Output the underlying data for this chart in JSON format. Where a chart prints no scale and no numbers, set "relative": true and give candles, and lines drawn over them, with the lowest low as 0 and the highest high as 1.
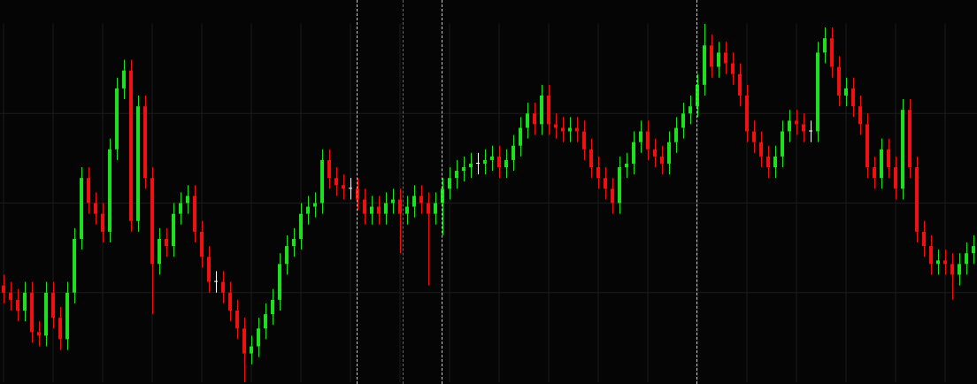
{
  "chart_data": {
    "type": "candlestick",
    "relative": true,
    "grid": true,
    "categories": [
      null,
      null,
      null,
      null,
      null,
      null,
      null,
      null,
      null,
      null,
      null,
      null,
      null,
      null,
      null,
      null,
      null,
      null,
      null,
      null,
      null,
      null,
      null,
      null,
      null,
      null,
      null,
      null,
      null,
      null,
      null,
      null,
      null,
      null,
      null,
      null,
      null,
      null,
      null,
      null,
      null,
      null,
      null,
      null,
      null,
      null,
      null,
      null,
      null,
      null,
      null,
      null,
      null,
      null,
      null,
      null,
      null,
      null,
      null,
      null,
      null,
      null,
      null,
      null,
      null,
      null,
      null,
      null,
      null,
      null,
      null,
      null,
      null,
      null,
      null,
      null,
      null,
      null,
      null,
      null,
      null,
      null,
      null,
      null,
      null,
      null,
      null,
      null,
      null,
      null,
      null,
      null,
      null,
      null,
      null,
      null,
      null,
      null,
      null,
      null,
      null,
      null,
      null,
      null,
      null,
      null,
      null,
      null,
      null,
      null,
      null,
      null,
      null,
      null,
      null,
      null,
      null,
      null,
      null,
      null,
      null,
      null,
      null,
      null,
      null,
      null,
      null,
      null,
      null,
      null,
      null,
      null,
      null,
      null,
      null,
      null,
      null,
      null
    ],
    "ohlc": [
      [
        0.27,
        0.3,
        0.22,
        0.25
      ],
      [
        0.25,
        0.28,
        0.2,
        0.23
      ],
      [
        0.23,
        0.26,
        0.17,
        0.2
      ],
      [
        0.2,
        0.28,
        0.17,
        0.25
      ],
      [
        0.25,
        0.28,
        0.11,
        0.14
      ],
      [
        0.14,
        0.17,
        0.1,
        0.13
      ],
      [
        0.13,
        0.28,
        0.1,
        0.25
      ],
      [
        0.25,
        0.28,
        0.15,
        0.18
      ],
      [
        0.18,
        0.21,
        0.09,
        0.12
      ],
      [
        0.12,
        0.28,
        0.09,
        0.25
      ],
      [
        0.25,
        0.43,
        0.22,
        0.4
      ],
      [
        0.4,
        0.6,
        0.37,
        0.57
      ],
      [
        0.57,
        0.6,
        0.47,
        0.5
      ],
      [
        0.5,
        0.53,
        0.44,
        0.47
      ],
      [
        0.47,
        0.5,
        0.39,
        0.42
      ],
      [
        0.42,
        0.68,
        0.39,
        0.65
      ],
      [
        0.65,
        0.85,
        0.62,
        0.82
      ],
      [
        0.82,
        0.9,
        0.79,
        0.87
      ],
      [
        0.87,
        0.9,
        0.42,
        0.45
      ],
      [
        0.45,
        0.8,
        0.42,
        0.77
      ],
      [
        0.77,
        0.8,
        0.54,
        0.57
      ],
      [
        0.57,
        0.6,
        0.19,
        0.33
      ],
      [
        0.33,
        0.43,
        0.3,
        0.4
      ],
      [
        0.4,
        0.43,
        0.35,
        0.38
      ],
      [
        0.38,
        0.5,
        0.35,
        0.47
      ],
      [
        0.47,
        0.53,
        0.44,
        0.5
      ],
      [
        0.5,
        0.55,
        0.47,
        0.52
      ],
      [
        0.52,
        0.55,
        0.39,
        0.42
      ],
      [
        0.42,
        0.45,
        0.32,
        0.35
      ],
      [
        0.35,
        0.38,
        0.25,
        0.28
      ],
      [
        0.28,
        0.31,
        0.25,
        0.28
      ],
      [
        0.28,
        0.31,
        0.22,
        0.25
      ],
      [
        0.25,
        0.28,
        0.17,
        0.2
      ],
      [
        0.2,
        0.23,
        0.12,
        0.15
      ],
      [
        0.15,
        0.18,
        0,
        0.08
      ],
      [
        0.08,
        0.13,
        0.05,
        0.1
      ],
      [
        0.1,
        0.18,
        0.07,
        0.15
      ],
      [
        0.15,
        0.22,
        0.12,
        0.19
      ],
      [
        0.19,
        0.26,
        0.16,
        0.23
      ],
      [
        0.23,
        0.36,
        0.2,
        0.33
      ],
      [
        0.33,
        0.41,
        0.3,
        0.38
      ],
      [
        0.38,
        0.43,
        0.35,
        0.4
      ],
      [
        0.4,
        0.5,
        0.37,
        0.47
      ],
      [
        0.47,
        0.52,
        0.44,
        0.49
      ],
      [
        0.49,
        0.53,
        0.46,
        0.5
      ],
      [
        0.5,
        0.65,
        0.47,
        0.62
      ],
      [
        0.62,
        0.65,
        0.54,
        0.57
      ],
      [
        0.57,
        0.6,
        0.52,
        0.55
      ],
      [
        0.55,
        0.58,
        0.51,
        0.54
      ],
      [
        0.54,
        0.57,
        0.51,
        0.54
      ],
      [
        0.54,
        0.57,
        0.48,
        0.51
      ],
      [
        0.51,
        0.54,
        0.44,
        0.47
      ],
      [
        0.47,
        0.52,
        0.44,
        0.49
      ],
      [
        0.49,
        0.52,
        0.44,
        0.47
      ],
      [
        0.47,
        0.53,
        0.44,
        0.5
      ],
      [
        0.5,
        0.54,
        0.47,
        0.51
      ],
      [
        0.51,
        0.54,
        0.36,
        0.47
      ],
      [
        0.47,
        0.52,
        0.44,
        0.49
      ],
      [
        0.49,
        0.55,
        0.46,
        0.52
      ],
      [
        0.52,
        0.55,
        0.47,
        0.5
      ],
      [
        0.5,
        0.53,
        0.27,
        0.47
      ],
      [
        0.47,
        0.53,
        0.44,
        0.5
      ],
      [
        0.5,
        0.57,
        0.41,
        0.54
      ],
      [
        0.54,
        0.6,
        0.51,
        0.57
      ],
      [
        0.57,
        0.62,
        0.54,
        0.59
      ],
      [
        0.59,
        0.63,
        0.56,
        0.6
      ],
      [
        0.6,
        0.64,
        0.57,
        0.61
      ],
      [
        0.61,
        0.64,
        0.58,
        0.61
      ],
      [
        0.61,
        0.65,
        0.58,
        0.62
      ],
      [
        0.62,
        0.66,
        0.59,
        0.63
      ],
      [
        0.63,
        0.66,
        0.57,
        0.6
      ],
      [
        0.6,
        0.65,
        0.57,
        0.62
      ],
      [
        0.62,
        0.69,
        0.59,
        0.66
      ],
      [
        0.66,
        0.74,
        0.63,
        0.71
      ],
      [
        0.71,
        0.78,
        0.68,
        0.75
      ],
      [
        0.75,
        0.78,
        0.69,
        0.72
      ],
      [
        0.72,
        0.83,
        0.69,
        0.8
      ],
      [
        0.8,
        0.83,
        0.69,
        0.72
      ],
      [
        0.72,
        0.75,
        0.68,
        0.71
      ],
      [
        0.71,
        0.74,
        0.67,
        0.7
      ],
      [
        0.7,
        0.74,
        0.67,
        0.71
      ],
      [
        0.71,
        0.74,
        0.67,
        0.7
      ],
      [
        0.7,
        0.73,
        0.62,
        0.65
      ],
      [
        0.65,
        0.68,
        0.57,
        0.6
      ],
      [
        0.6,
        0.63,
        0.54,
        0.57
      ],
      [
        0.57,
        0.6,
        0.51,
        0.54
      ],
      [
        0.54,
        0.57,
        0.47,
        0.5
      ],
      [
        0.5,
        0.63,
        0.47,
        0.6
      ],
      [
        0.6,
        0.64,
        0.57,
        0.61
      ],
      [
        0.61,
        0.7,
        0.58,
        0.67
      ],
      [
        0.67,
        0.73,
        0.64,
        0.7
      ],
      [
        0.7,
        0.73,
        0.62,
        0.65
      ],
      [
        0.65,
        0.68,
        0.6,
        0.63
      ],
      [
        0.63,
        0.66,
        0.58,
        0.61
      ],
      [
        0.61,
        0.7,
        0.58,
        0.67
      ],
      [
        0.67,
        0.74,
        0.64,
        0.71
      ],
      [
        0.71,
        0.78,
        0.68,
        0.75
      ],
      [
        0.75,
        0.8,
        0.72,
        0.77
      ],
      [
        0.77,
        0.86,
        0.74,
        0.83
      ],
      [
        0.83,
        1,
        0.8,
        0.94
      ],
      [
        0.94,
        0.97,
        0.85,
        0.88
      ],
      [
        0.88,
        0.95,
        0.85,
        0.92
      ],
      [
        0.92,
        0.95,
        0.86,
        0.89
      ],
      [
        0.89,
        0.92,
        0.83,
        0.86
      ],
      [
        0.86,
        0.89,
        0.77,
        0.8
      ],
      [
        0.8,
        0.83,
        0.67,
        0.7
      ],
      [
        0.7,
        0.73,
        0.64,
        0.67
      ],
      [
        0.67,
        0.7,
        0.6,
        0.63
      ],
      [
        0.63,
        0.66,
        0.57,
        0.6
      ],
      [
        0.6,
        0.66,
        0.57,
        0.63
      ],
      [
        0.63,
        0.73,
        0.6,
        0.7
      ],
      [
        0.7,
        0.76,
        0.67,
        0.73
      ],
      [
        0.73,
        0.76,
        0.69,
        0.72
      ],
      [
        0.72,
        0.75,
        0.67,
        0.7
      ],
      [
        0.7,
        0.73,
        0.67,
        0.7
      ],
      [
        0.7,
        0.95,
        0.67,
        0.92
      ],
      [
        0.92,
        0.99,
        0.89,
        0.96
      ],
      [
        0.96,
        0.99,
        0.85,
        0.88
      ],
      [
        0.88,
        0.91,
        0.77,
        0.8
      ],
      [
        0.8,
        0.85,
        0.77,
        0.82
      ],
      [
        0.82,
        0.85,
        0.74,
        0.77
      ],
      [
        0.77,
        0.8,
        0.69,
        0.72
      ],
      [
        0.72,
        0.75,
        0.57,
        0.6
      ],
      [
        0.6,
        0.63,
        0.54,
        0.57
      ],
      [
        0.57,
        0.68,
        0.54,
        0.65
      ],
      [
        0.65,
        0.68,
        0.57,
        0.6
      ],
      [
        0.6,
        0.63,
        0.51,
        0.54
      ],
      [
        0.54,
        0.79,
        0.51,
        0.76
      ],
      [
        0.76,
        0.79,
        0.57,
        0.6
      ],
      [
        0.6,
        0.63,
        0.39,
        0.42
      ],
      [
        0.42,
        0.45,
        0.35,
        0.38
      ],
      [
        0.38,
        0.41,
        0.3,
        0.33
      ],
      [
        0.33,
        0.37,
        0.3,
        0.34
      ],
      [
        0.34,
        0.37,
        0.3,
        0.33
      ],
      [
        0.33,
        0.36,
        0.23,
        0.3
      ],
      [
        0.3,
        0.36,
        0.27,
        0.33
      ],
      [
        0.33,
        0.39,
        0.3,
        0.36
      ],
      [
        0.36,
        0.41,
        0.33,
        0.38
      ]
    ],
    "colors": [
      "#f01010",
      "#f01010",
      "#f01010",
      "#1fe01f",
      "#f01010",
      "#f01010",
      "#1fe01f",
      "#f01010",
      "#f01010",
      "#1fe01f",
      "#1fe01f",
      "#1fe01f",
      "#f01010",
      "#f01010",
      "#f01010",
      "#1fe01f",
      "#1fe01f",
      "#1fe01f",
      "#f01010",
      "#1fe01f",
      "#f01010",
      "#f01010",
      "#1fe01f",
      "#f01010",
      "#1fe01f",
      "#1fe01f",
      "#1fe01f",
      "#f01010",
      "#f01010",
      "#f01010",
      "#ffffff",
      "#f01010",
      "#f01010",
      "#f01010",
      "#f01010",
      "#1fe01f",
      "#1fe01f",
      "#1fe01f",
      "#1fe01f",
      "#1fe01f",
      "#1fe01f",
      "#1fe01f",
      "#1fe01f",
      "#1fe01f",
      "#1fe01f",
      "#1fe01f",
      "#f01010",
      "#f01010",
      "#f01010",
      "#ffffff",
      "#f01010",
      "#f01010",
      "#1fe01f",
      "#f01010",
      "#1fe01f",
      "#1fe01f",
      "#f01010",
      "#1fe01f",
      "#1fe01f",
      "#f01010",
      "#f01010",
      "#1fe01f",
      "#1fe01f",
      "#1fe01f",
      "#1fe01f",
      "#1fe01f",
      "#1fe01f",
      "#ffffff",
      "#1fe01f",
      "#1fe01f",
      "#f01010",
      "#1fe01f",
      "#1fe01f",
      "#1fe01f",
      "#1fe01f",
      "#f01010",
      "#1fe01f",
      "#f01010",
      "#f01010",
      "#f01010",
      "#1fe01f",
      "#f01010",
      "#f01010",
      "#f01010",
      "#f01010",
      "#f01010",
      "#f01010",
      "#1fe01f",
      "#1fe01f",
      "#1fe01f",
      "#1fe01f",
      "#f01010",
      "#f01010",
      "#f01010",
      "#1fe01f",
      "#1fe01f",
      "#1fe01f",
      "#1fe01f",
      "#1fe01f",
      "#1fe01f",
      "#f01010",
      "#1fe01f",
      "#f01010",
      "#f01010",
      "#f01010",
      "#f01010",
      "#f01010",
      "#f01010",
      "#f01010",
      "#1fe01f",
      "#1fe01f",
      "#1fe01f",
      "#f01010",
      "#f01010",
      "#ffffff",
      "#1fe01f",
      "#1fe01f",
      "#f01010",
      "#f01010",
      "#1fe01f",
      "#f01010",
      "#f01010",
      "#f01010",
      "#f01010",
      "#1fe01f",
      "#f01010",
      "#f01010",
      "#1fe01f",
      "#f01010",
      "#f01010",
      "#f01010",
      "#f01010",
      "#1fe01f",
      "#f01010",
      "#f01010",
      "#1fe01f",
      "#1fe01f",
      "#1fe01f"
    ]
  }
}
